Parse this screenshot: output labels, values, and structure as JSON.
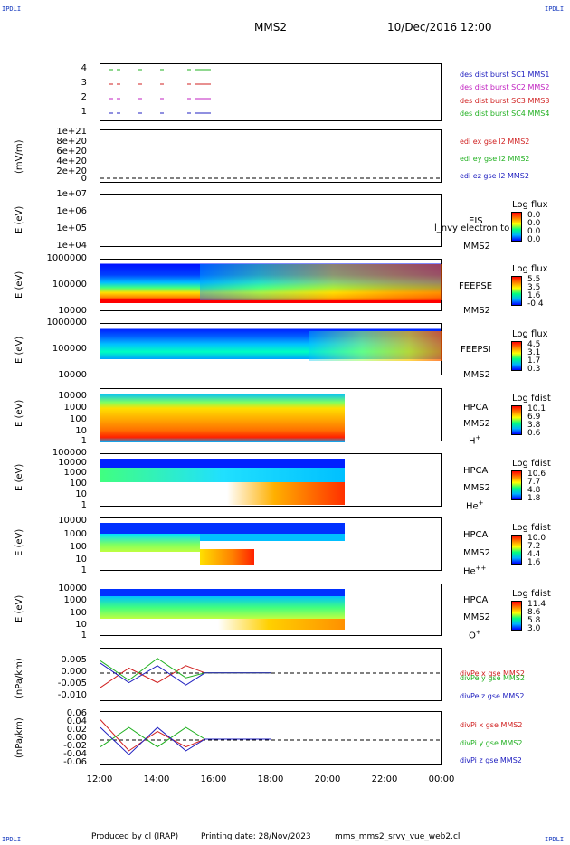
{
  "corners": {
    "tl": "IPDLI",
    "tr": "IPDLI",
    "bl": "IPDLI",
    "br": "IPDLI"
  },
  "header": {
    "spacecraft": "MMS2",
    "date": "10/Dec/2016 12:00"
  },
  "panels": {
    "burst": {
      "yticks": [
        "4",
        "3",
        "2",
        "1"
      ],
      "legend": [
        {
          "text": "des dist burst SC1 MMS1",
          "color": "#2020c0"
        },
        {
          "text": "des dist burst SC2 MMS2",
          "color": "#c020c0"
        },
        {
          "text": "des dist burst SC3 MMS3",
          "color": "#d02020"
        },
        {
          "text": "des dist burst SC4 MMS4",
          "color": "#20b020"
        }
      ]
    },
    "edi": {
      "ylabel": "(mV/m)",
      "yticks": [
        "1e+21",
        "8e+20",
        "6e+20",
        "4e+20",
        "2e+20",
        "0"
      ],
      "legend": [
        {
          "text": "edi ex gse l2 MMS2",
          "color": "#d02020"
        },
        {
          "text": "edi ey gse l2 MMS2",
          "color": "#20b020"
        },
        {
          "text": "edi ez gse l2 MMS2",
          "color": "#2020c0"
        }
      ]
    },
    "eis": {
      "ylabel": "E (eV)",
      "yticks": [
        "1e+07",
        "1e+06",
        "1e+05",
        "1e+04"
      ],
      "inst1": "EIS",
      "inst2": "MMS2",
      "overlay": "l_nvy electron to",
      "cbar_title": "Log flux",
      "cbar_values": [
        "0.0",
        "0.0",
        "0.0",
        "0.0"
      ]
    },
    "feepse": {
      "ylabel": "E (eV)",
      "yticks": [
        "1000000",
        "100000",
        "10000"
      ],
      "inst1": "FEEPSE",
      "inst2": "MMS2",
      "cbar_title": "Log flux",
      "cbar_values": [
        "5.5",
        "3.5",
        "1.6",
        "-0.4"
      ]
    },
    "feepsi": {
      "ylabel": "E (eV)",
      "yticks": [
        "1000000",
        "100000",
        "10000"
      ],
      "inst1": "FEEPSI",
      "inst2": "MMS2",
      "cbar_title": "Log flux",
      "cbar_values": [
        "4.5",
        "3.1",
        "1.7",
        "0.3"
      ]
    },
    "hpca_h": {
      "ylabel": "E (eV)",
      "yticks": [
        "10000",
        "1000",
        "100",
        "10",
        "1"
      ],
      "inst1": "HPCA",
      "inst2": "MMS2",
      "species": "H",
      "charge": "+",
      "cbar_title": "Log fdist",
      "cbar_values": [
        "10.1",
        "6.9",
        "3.8",
        "0.6"
      ]
    },
    "hpca_he": {
      "ylabel": "E (eV)",
      "yticks": [
        "100000",
        "10000",
        "1000",
        "100",
        "10",
        "1"
      ],
      "inst1": "HPCA",
      "inst2": "MMS2",
      "species": "He",
      "charge": "+",
      "cbar_title": "Log fdist",
      "cbar_values": [
        "10.6",
        "7.7",
        "4.8",
        "1.8"
      ]
    },
    "hpca_he2": {
      "ylabel": "E (eV)",
      "yticks": [
        "10000",
        "1000",
        "100",
        "10",
        "1"
      ],
      "inst1": "HPCA",
      "inst2": "MMS2",
      "species": "He",
      "charge": "++",
      "cbar_title": "Log fdist",
      "cbar_values": [
        "10.0",
        "7.2",
        "4.4",
        "1.6"
      ]
    },
    "hpca_o": {
      "ylabel": "E (eV)",
      "yticks": [
        "10000",
        "1000",
        "100",
        "10",
        "1"
      ],
      "inst1": "HPCA",
      "inst2": "MMS2",
      "species": "O",
      "charge": "+",
      "cbar_title": "Log fdist",
      "cbar_values": [
        "11.4",
        "8.6",
        "5.8",
        "3.0"
      ]
    },
    "divpe": {
      "ylabel": "(nPa/km)",
      "yticks": [
        "0.005",
        "0.000",
        "-0.005",
        "-0.010"
      ],
      "legend": [
        {
          "text": "divPe x gse MMS2",
          "color": "#d02020"
        },
        {
          "text": "divPe y gse MMS2",
          "color": "#20b020"
        },
        {
          "text": "divPe z gse MMS2",
          "color": "#2020c0"
        }
      ]
    },
    "divpi": {
      "ylabel": "(nPa/km)",
      "yticks": [
        "0.06",
        "0.04",
        "0.02",
        "0.00",
        "-0.02",
        "-0.04",
        "-0.06"
      ],
      "legend": [
        {
          "text": "divPi x gse MMS2",
          "color": "#d02020"
        },
        {
          "text": "divPi y gse MMS2",
          "color": "#20b020"
        },
        {
          "text": "divPi z gse MMS2",
          "color": "#2020c0"
        }
      ]
    }
  },
  "xticks": [
    "12:00",
    "14:00",
    "16:00",
    "18:00",
    "20:00",
    "22:00",
    "00:00"
  ],
  "footer": {
    "produced": "Produced by cl (IRAP)",
    "printing": "Printing date: 28/Nov/2023",
    "file": "mms_mms2_srvy_vue_web2.cl"
  },
  "chart_data": {
    "type": "line",
    "title": "MMS2",
    "xlabel": "",
    "x_range": [
      "12:00",
      "00:00"
    ],
    "x_ticks": [
      "12:00",
      "14:00",
      "16:00",
      "18:00",
      "20:00",
      "22:00",
      "00:00"
    ],
    "divPe": {
      "ylim": [
        -0.012,
        0.01
      ],
      "series": [
        {
          "name": "divPe x gse MMS2",
          "x": [
            "12:00",
            "13:00",
            "14:00",
            "15:00",
            "15:40",
            "18:00"
          ],
          "values": [
            -0.006,
            0.002,
            -0.004,
            0.003,
            0.0,
            0.0
          ]
        },
        {
          "name": "divPe y gse MMS2",
          "x": [
            "12:00",
            "13:00",
            "14:00",
            "15:00",
            "15:40",
            "18:00"
          ],
          "values": [
            0.005,
            -0.003,
            0.006,
            -0.002,
            0.0,
            0.0
          ]
        },
        {
          "name": "divPe z gse MMS2",
          "x": [
            "12:00",
            "13:00",
            "14:00",
            "15:00",
            "15:40",
            "18:00"
          ],
          "values": [
            0.004,
            -0.004,
            0.003,
            -0.005,
            0.0,
            0.0
          ]
        }
      ]
    },
    "divPi": {
      "ylim": [
        -0.07,
        0.07
      ],
      "series": [
        {
          "name": "divPi x gse MMS2",
          "x": [
            "12:00",
            "13:00",
            "14:00",
            "15:00",
            "15:40",
            "18:00"
          ],
          "values": [
            0.05,
            -0.03,
            0.02,
            -0.02,
            0.0,
            0.0
          ]
        },
        {
          "name": "divPi y gse MMS2",
          "x": [
            "12:00",
            "13:00",
            "14:00",
            "15:00",
            "15:40",
            "18:00"
          ],
          "values": [
            -0.02,
            0.03,
            -0.02,
            0.03,
            0.0,
            0.0
          ]
        },
        {
          "name": "divPi z gse MMS2",
          "x": [
            "12:00",
            "13:00",
            "14:00",
            "15:00",
            "15:40",
            "18:00"
          ],
          "values": [
            0.03,
            -0.04,
            0.03,
            -0.03,
            0.0,
            0.0
          ]
        }
      ]
    }
  }
}
